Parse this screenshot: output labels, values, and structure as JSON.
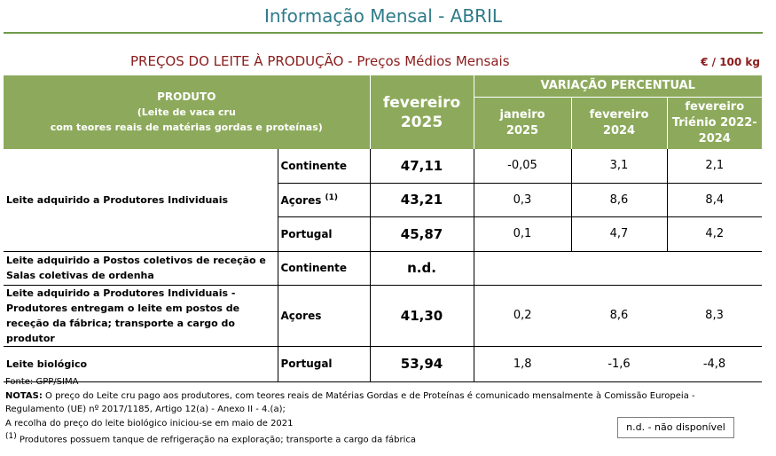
{
  "title": "Informação Mensal - ABRIL",
  "subtitle": "PREÇOS DO LEITE À PRODUÇÃO - Preços Médios Mensais",
  "unit": "€ / 100 kg",
  "header": {
    "produto": "PRODUTO",
    "produto_sub1": "(Leite de vaca cru",
    "produto_sub2": "com teores reais de matérias gordas e proteínas)",
    "feb_month": "fevereiro",
    "feb_year": "2025",
    "variacao": "VARIAÇÃO PERCENTUAL",
    "col1_a": "janeiro",
    "col1_b": "2025",
    "col2_a": "fevereiro",
    "col2_b": "2024",
    "col3_a": "fevereiro",
    "col3_b": "Triénio 2022-2024"
  },
  "rows": [
    {
      "region": "Continente",
      "price": "47,11",
      "v1": "-0,05",
      "v2": "3,1",
      "v3": "2,1"
    },
    {
      "region": "Açores",
      "sup": "(1)",
      "price": "43,21",
      "v1": "0,3",
      "v2": "8,6",
      "v3": "8,4"
    },
    {
      "region": "Portugal",
      "price": "45,87",
      "v1": "0,1",
      "v2": "4,7",
      "v3": "4,2"
    },
    {
      "region": "Continente",
      "price": "n.d.",
      "v1": "",
      "v2": "",
      "v3": ""
    },
    {
      "region": "Açores",
      "price": "41,30",
      "v1": "0,2",
      "v2": "8,6",
      "v3": "8,3"
    },
    {
      "region": "Portugal",
      "price": "53,94",
      "v1": "1,8",
      "v2": "-1,6",
      "v3": "-4,8"
    }
  ],
  "groups": {
    "g1": "Leite adquirido a Produtores Individuais",
    "g2": "Leite adquirido a Postos coletivos de receção e Salas coletivas de ordenha",
    "g3": "Leite adquirido a Produtores Individuais - Produtores entregam o leite em postos de receção da fábrica; transporte a cargo do produtor",
    "g4": "Leite biológico"
  },
  "notes": {
    "fonte": "Fonte: GPP/SIMA",
    "notas_label": "NOTAS:",
    "notas_text": " O preço do Leite cru pago aos produtores, com teores reais de Matérias Gordas e de Proteínas é comunicado mensalmente à Comissão Europeia - Regulamento (UE) nº 2017/1185, Artigo 12(a) - Anexo II - 4.(a);",
    "line3": "A recolha do preço do leite biológico iniciou-se em maio de 2021",
    "footnote_mark": "(1)",
    "footnote": " Produtores possuem tanque de refrigeração na exploração; transporte a cargo da fábrica",
    "nd_legend": "n.d. - não disponível"
  }
}
